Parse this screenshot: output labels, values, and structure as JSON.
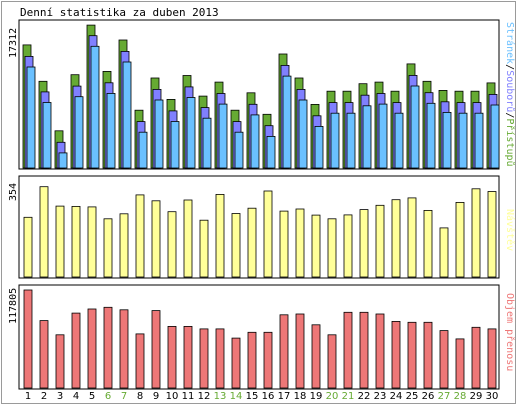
{
  "title": "Denní statistika za duben 2013",
  "colors": {
    "pages": "#6ac0ff",
    "hits": "#8080ff",
    "files": "#66aa33",
    "visits": "#ffff99",
    "bandwidth": "#ee7777",
    "tick_weekday": "#000000",
    "tick_weekend": "#66aa33",
    "outline": "#000000"
  },
  "chart_data": [
    {
      "type": "bar",
      "title": "",
      "ymax_label": "17312",
      "ylabel": "17312",
      "right_label": [
        "Stránek",
        "/",
        "Souborů",
        "/",
        "Přístupů"
      ],
      "right_label_colors": [
        "#6ac0ff",
        "#000000",
        "#8080ff",
        "#000000",
        "#66aa33"
      ],
      "ylim": [
        0,
        17312
      ],
      "categories": [
        "1",
        "2",
        "3",
        "4",
        "5",
        "6",
        "7",
        "8",
        "9",
        "10",
        "11",
        "12",
        "13",
        "14",
        "15",
        "16",
        "17",
        "18",
        "19",
        "20",
        "21",
        "22",
        "23",
        "24",
        "25",
        "26",
        "27",
        "28",
        "29",
        "30"
      ],
      "series": [
        {
          "name": "Přístupů",
          "values": [
            14900,
            10500,
            4500,
            11300,
            17300,
            11700,
            15500,
            7000,
            10900,
            8300,
            11200,
            8700,
            10400,
            7000,
            9100,
            6500,
            13800,
            10900,
            7700,
            9300,
            9300,
            10200,
            10400,
            9300,
            12600,
            10500,
            9400,
            9300,
            9300,
            10300
          ]
        },
        {
          "name": "Souborů",
          "values": [
            14000,
            9700,
            3600,
            10400,
            16500,
            10800,
            14600,
            6100,
            10000,
            7400,
            10300,
            7800,
            9500,
            6100,
            8200,
            5600,
            12900,
            10000,
            6800,
            8400,
            8400,
            9300,
            9500,
            8400,
            11700,
            9600,
            8500,
            8400,
            8400,
            9400
          ]
        },
        {
          "name": "Stránek",
          "values": [
            13200,
            8900,
            2800,
            9600,
            15700,
            10000,
            13800,
            5300,
            9200,
            6600,
            9500,
            7000,
            8700,
            5300,
            7400,
            4800,
            12100,
            9200,
            6000,
            7600,
            7600,
            8500,
            8700,
            7600,
            10900,
            8800,
            7700,
            7600,
            7600,
            8600
          ]
        }
      ]
    },
    {
      "type": "bar",
      "title": "",
      "ymax_label": "354",
      "ylabel": "354",
      "right_label": [
        "Návštěv"
      ],
      "right_label_colors": [
        "#ffff99"
      ],
      "ylim": [
        0,
        354
      ],
      "categories": [
        "1",
        "2",
        "3",
        "4",
        "5",
        "6",
        "7",
        "8",
        "9",
        "10",
        "11",
        "12",
        "13",
        "14",
        "15",
        "16",
        "17",
        "18",
        "19",
        "20",
        "21",
        "22",
        "23",
        "24",
        "25",
        "26",
        "27",
        "28",
        "29",
        "30"
      ],
      "series": [
        {
          "name": "Návštěv",
          "values": [
            225,
            340,
            267,
            266,
            264,
            219,
            238,
            309,
            287,
            246,
            290,
            214,
            311,
            239,
            259,
            324,
            248,
            256,
            233,
            219,
            234,
            254,
            270,
            291,
            298,
            251,
            185,
            281,
            332,
            322
          ]
        }
      ]
    },
    {
      "type": "bar",
      "title": "",
      "ymax_label": "117805",
      "ylabel": "117805",
      "right_label": [
        "Objem přenosu"
      ],
      "right_label_colors": [
        "#ee7777"
      ],
      "ylim": [
        0,
        117805
      ],
      "categories": [
        "1",
        "2",
        "3",
        "4",
        "5",
        "6",
        "7",
        "8",
        "9",
        "10",
        "11",
        "12",
        "13",
        "14",
        "15",
        "16",
        "17",
        "18",
        "19",
        "20",
        "21",
        "22",
        "23",
        "24",
        "25",
        "26",
        "27",
        "28",
        "29",
        "30"
      ],
      "series": [
        {
          "name": "Objem přenosu",
          "values": [
            117805,
            81000,
            64000,
            90000,
            95000,
            97000,
            94000,
            65000,
            93000,
            74000,
            74000,
            71000,
            71000,
            60000,
            67000,
            67000,
            88000,
            89000,
            76000,
            64000,
            91000,
            91000,
            89000,
            80000,
            79000,
            79000,
            69000,
            59000,
            73000,
            71000
          ]
        }
      ]
    }
  ],
  "x_ticks": [
    "1",
    "2",
    "3",
    "4",
    "5",
    "6",
    "7",
    "8",
    "9",
    "10",
    "11",
    "12",
    "13",
    "14",
    "15",
    "16",
    "17",
    "18",
    "19",
    "20",
    "21",
    "22",
    "23",
    "24",
    "25",
    "26",
    "27",
    "28",
    "29",
    "30"
  ],
  "weekend_days": [
    "6",
    "7",
    "13",
    "14",
    "20",
    "21",
    "27",
    "28"
  ]
}
